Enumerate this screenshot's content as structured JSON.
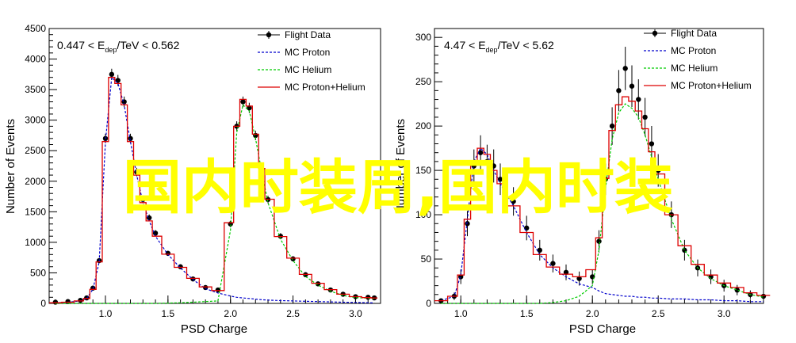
{
  "watermark": {
    "text": "国内时装周,国内时装",
    "color": "#ffff00"
  },
  "colors": {
    "flight": "#000000",
    "proton": "#0000cc",
    "helium": "#00cc00",
    "sum": "#dd0000"
  },
  "legend_labels": [
    "Flight Data",
    "MC Proton",
    "MC Helium",
    "MC Proton+Helium"
  ],
  "chart_data": [
    {
      "type": "line",
      "panel": "left",
      "title_prefix": "0.447 < E",
      "title_sub": "dep",
      "title_suffix": "/TeV < 0.562",
      "xlabel": "PSD Charge",
      "ylabel": "Number of Events",
      "xlim": [
        0.55,
        3.2
      ],
      "ylim": [
        0,
        4500
      ],
      "xticks": [
        1.0,
        1.5,
        2.0,
        2.5,
        3.0
      ],
      "yticks": [
        0,
        500,
        1000,
        1500,
        2000,
        2500,
        3000,
        3500,
        4000,
        4500
      ],
      "x": [
        0.6,
        0.7,
        0.8,
        0.85,
        0.9,
        0.95,
        1.0,
        1.05,
        1.1,
        1.15,
        1.2,
        1.25,
        1.3,
        1.35,
        1.4,
        1.5,
        1.6,
        1.7,
        1.8,
        1.9,
        2.0,
        2.05,
        2.1,
        2.15,
        2.2,
        2.25,
        2.3,
        2.4,
        2.5,
        2.6,
        2.7,
        2.8,
        2.9,
        3.0,
        3.1,
        3.15
      ],
      "series": [
        {
          "name": "Flight Data",
          "style": "points",
          "values": [
            20,
            30,
            50,
            90,
            250,
            700,
            2700,
            3750,
            3650,
            3300,
            2700,
            2150,
            1700,
            1400,
            1150,
            820,
            600,
            400,
            260,
            220,
            1300,
            2900,
            3300,
            3200,
            2750,
            2200,
            1700,
            1100,
            730,
            470,
            320,
            220,
            150,
            110,
            100,
            90
          ]
        },
        {
          "name": "MC Proton",
          "style": "dashed",
          "values": [
            10,
            20,
            40,
            80,
            230,
            680,
            2650,
            3700,
            3600,
            3250,
            2650,
            2100,
            1650,
            1350,
            1100,
            800,
            580,
            390,
            240,
            170,
            120,
            100,
            90,
            80,
            70,
            60,
            55,
            45,
            40,
            35,
            30,
            25,
            20,
            15,
            10,
            8
          ]
        },
        {
          "name": "MC Helium",
          "style": "dashed",
          "values": [
            0,
            0,
            0,
            0,
            0,
            0,
            0,
            0,
            0,
            0,
            0,
            0,
            0,
            0,
            0,
            5,
            10,
            20,
            30,
            40,
            1200,
            2800,
            3250,
            3150,
            2700,
            2150,
            1650,
            1050,
            700,
            440,
            300,
            200,
            130,
            95,
            85,
            80
          ]
        },
        {
          "name": "MC Proton+Helium",
          "style": "step",
          "values": [
            10,
            20,
            40,
            80,
            230,
            680,
            2650,
            3700,
            3600,
            3250,
            2650,
            2100,
            1650,
            1350,
            1100,
            805,
            590,
            410,
            270,
            210,
            1320,
            2900,
            3340,
            3230,
            2770,
            2210,
            1705,
            1095,
            740,
            475,
            330,
            225,
            150,
            110,
            95,
            88
          ]
        }
      ]
    },
    {
      "type": "line",
      "panel": "right",
      "title_prefix": "4.47 < E",
      "title_sub": "dep",
      "title_suffix": "/TeV < 5.62",
      "xlabel": "PSD Charge",
      "ylabel": "Number of Events",
      "xlim": [
        0.8,
        3.3
      ],
      "ylim": [
        0,
        310
      ],
      "xticks": [
        1.0,
        1.5,
        2.0,
        2.5,
        3.0
      ],
      "yticks": [
        0,
        50,
        100,
        150,
        200,
        250,
        300
      ],
      "x": [
        0.85,
        0.95,
        1.0,
        1.05,
        1.1,
        1.15,
        1.2,
        1.25,
        1.3,
        1.4,
        1.5,
        1.6,
        1.7,
        1.8,
        1.9,
        2.0,
        2.05,
        2.1,
        2.15,
        2.2,
        2.25,
        2.3,
        2.35,
        2.4,
        2.45,
        2.5,
        2.6,
        2.7,
        2.8,
        2.9,
        3.0,
        3.1,
        3.2,
        3.3
      ],
      "series": [
        {
          "name": "Flight Data",
          "style": "points",
          "values": [
            3,
            8,
            30,
            90,
            155,
            170,
            160,
            155,
            140,
            115,
            85,
            60,
            45,
            35,
            28,
            30,
            70,
            140,
            200,
            240,
            265,
            245,
            230,
            210,
            180,
            150,
            100,
            60,
            40,
            30,
            20,
            15,
            10,
            8
          ]
        },
        {
          "name": "MC Proton",
          "style": "dashed",
          "values": [
            3,
            8,
            32,
            95,
            160,
            175,
            168,
            150,
            135,
            110,
            80,
            55,
            40,
            30,
            22,
            18,
            14,
            11,
            10,
            9,
            8,
            8,
            7,
            7,
            6,
            6,
            5,
            5,
            4,
            4,
            3,
            3,
            2,
            2
          ]
        },
        {
          "name": "MC Helium",
          "style": "dashed",
          "values": [
            0,
            0,
            0,
            0,
            0,
            0,
            0,
            0,
            0,
            0,
            0,
            0,
            1,
            3,
            8,
            20,
            60,
            130,
            185,
            215,
            225,
            220,
            210,
            190,
            165,
            140,
            95,
            60,
            40,
            28,
            20,
            15,
            10,
            7
          ]
        },
        {
          "name": "MC Proton+Helium",
          "style": "step",
          "values": [
            3,
            8,
            32,
            95,
            160,
            175,
            168,
            150,
            135,
            110,
            80,
            55,
            41,
            33,
            30,
            38,
            74,
            141,
            195,
            224,
            233,
            228,
            217,
            197,
            171,
            146,
            100,
            65,
            44,
            32,
            23,
            18,
            12,
            9
          ]
        }
      ]
    }
  ]
}
